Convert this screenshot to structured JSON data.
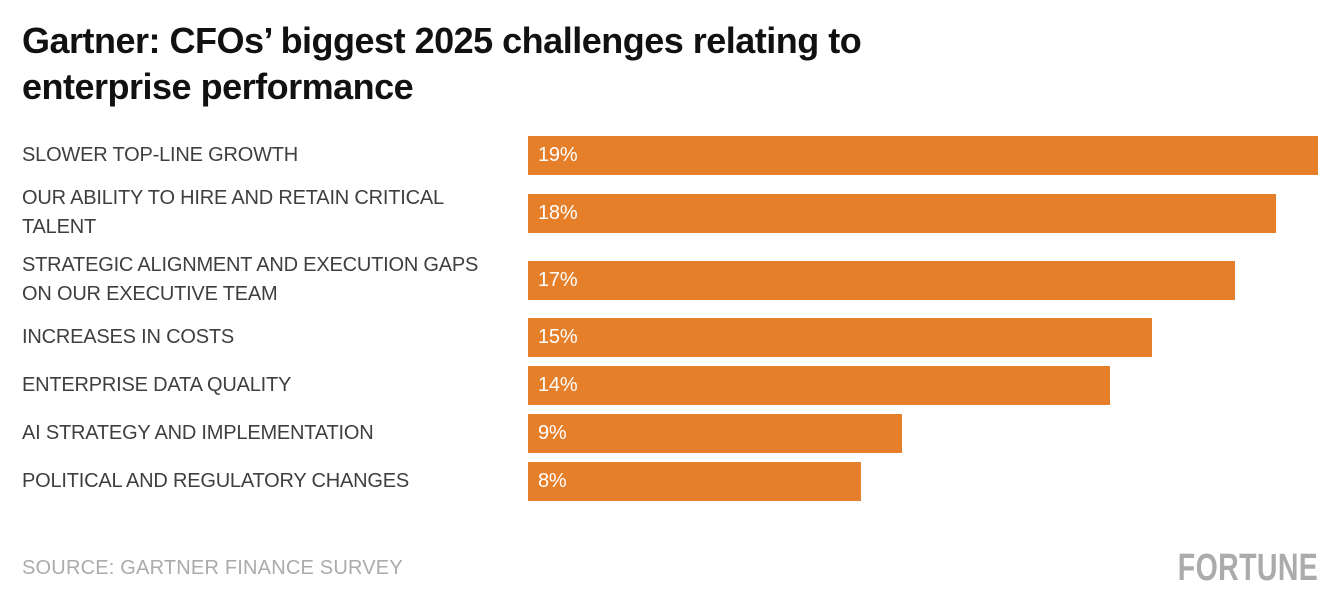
{
  "title": {
    "line1": "Gartner: CFOs’ biggest 2025 challenges relating to",
    "line2": "enterprise performance"
  },
  "source": "SOURCE: GARTNER FINANCE SURVEY",
  "logo_text": "FORTUNE",
  "colors": {
    "bar": "#E67F2A",
    "bar_text": "#FFFFFF",
    "title_text": "#111111",
    "label_text": "#3F3F3F",
    "muted_text": "#ABABAB",
    "background": "#FFFFFF"
  },
  "chart_data": {
    "type": "bar",
    "orientation": "horizontal",
    "title": "Gartner: CFOs’ biggest 2025 challenges relating to enterprise performance",
    "xlabel": "",
    "ylabel": "",
    "xlim": [
      0,
      19
    ],
    "grid": false,
    "legend": false,
    "categories": [
      "SLOWER TOP-LINE GROWTH",
      "OUR ABILITY TO HIRE AND RETAIN CRITICAL TALENT",
      "STRATEGIC ALIGNMENT AND EXECUTION GAPS ON OUR EXECUTIVE TEAM",
      "INCREASES IN COSTS",
      "ENTERPRISE DATA QUALITY",
      "AI STRATEGY AND IMPLEMENTATION",
      "POLITICAL AND REGULATORY CHANGES"
    ],
    "values": [
      19,
      18,
      17,
      15,
      14,
      9,
      8
    ],
    "value_labels": [
      "19%",
      "18%",
      "17%",
      "15%",
      "14%",
      "9%",
      "8%"
    ],
    "max_value": 19,
    "rows": [
      {
        "label_lines": [
          "SLOWER TOP-LINE GROWTH"
        ],
        "value": 19,
        "display": "19%"
      },
      {
        "label_lines": [
          "OUR ABILITY TO HIRE AND RETAIN CRITICAL",
          "TALENT"
        ],
        "value": 18,
        "display": "18%"
      },
      {
        "label_lines": [
          "STRATEGIC ALIGNMENT AND EXECUTION GAPS",
          "ON OUR EXECUTIVE TEAM"
        ],
        "value": 17,
        "display": "17%"
      },
      {
        "label_lines": [
          "INCREASES IN COSTS"
        ],
        "value": 15,
        "display": "15%"
      },
      {
        "label_lines": [
          "ENTERPRISE DATA QUALITY"
        ],
        "value": 14,
        "display": "14%"
      },
      {
        "label_lines": [
          "AI STRATEGY AND IMPLEMENTATION"
        ],
        "value": 9,
        "display": "9%"
      },
      {
        "label_lines": [
          "POLITICAL AND REGULATORY CHANGES"
        ],
        "value": 8,
        "display": "8%"
      }
    ]
  }
}
